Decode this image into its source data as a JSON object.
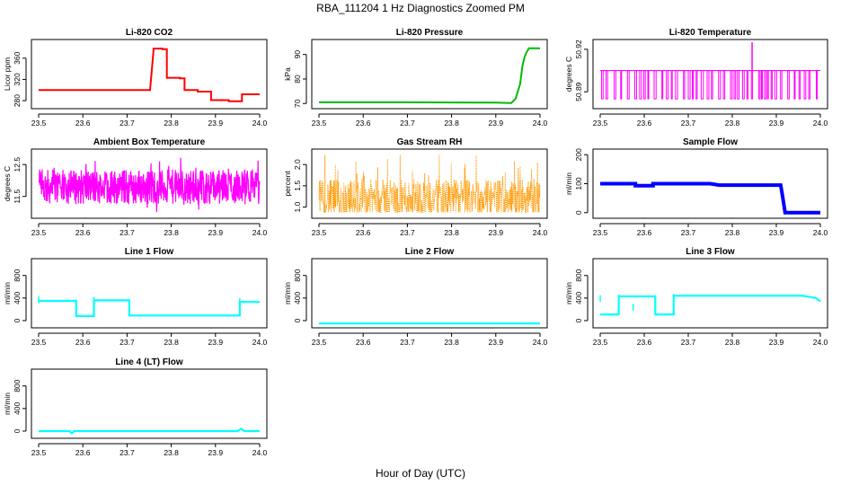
{
  "figure": {
    "title": "RBA_111204  1 Hz Diagnostics Zoomed PM",
    "xlabel": "Hour of Day (UTC)"
  },
  "chart_data": [
    {
      "type": "line",
      "title": "Li-820 CO2",
      "ylabel": "Licor ppm",
      "color": "#ff0000",
      "xlim": [
        23.5,
        24.0
      ],
      "ylim": [
        270,
        390
      ],
      "xticks": [
        "23.5",
        "23.6",
        "23.7",
        "23.8",
        "23.9",
        "24.0"
      ],
      "yticks": [
        "280",
        "320",
        "360"
      ],
      "series": [
        {
          "name": "CO2",
          "x": [
            23.5,
            23.75,
            23.752,
            23.76,
            23.76,
            23.78,
            23.78,
            23.79,
            23.79,
            23.82,
            23.82,
            23.83,
            23.83,
            23.86,
            23.86,
            23.89,
            23.89,
            23.93,
            23.93,
            23.96,
            23.96,
            24.0
          ],
          "y": [
            300,
            300,
            300,
            375,
            378,
            378,
            377,
            377,
            323,
            323,
            322,
            322,
            300,
            300,
            297,
            297,
            281,
            281,
            279,
            279,
            292,
            292
          ]
        }
      ]
    },
    {
      "type": "line",
      "title": "Li-820 Pressure",
      "ylabel": "kPa",
      "color": "#00bb00",
      "xlim": [
        23.5,
        24.0
      ],
      "ylim": [
        69,
        95
      ],
      "xticks": [
        "23.5",
        "23.6",
        "23.7",
        "23.8",
        "23.9",
        "24.0"
      ],
      "yticks": [
        "70",
        "80",
        "90"
      ],
      "series": [
        {
          "name": "Pressure",
          "x": [
            23.5,
            23.7,
            23.9,
            23.935,
            23.945,
            23.955,
            23.96,
            23.965,
            23.97,
            23.975,
            23.98,
            24.0
          ],
          "y": [
            70.5,
            70.5,
            70.4,
            70.2,
            72,
            78,
            85,
            89,
            91,
            92.5,
            92.5,
            92.5
          ]
        }
      ]
    },
    {
      "type": "line",
      "title": "Li-820 Temperature",
      "ylabel": "degrees C",
      "color": "#ff00ff",
      "xlim": [
        23.5,
        24.0
      ],
      "ylim": [
        50.88,
        50.925
      ],
      "xticks": [
        "23.5",
        "23.6",
        "23.7",
        "23.8",
        "23.9",
        "24.0"
      ],
      "yticks": [
        "50.89",
        "50.92"
      ],
      "series": [
        {
          "name": "Temperature",
          "x": [
            23.5,
            24.0
          ],
          "y": [
            50.905,
            50.905
          ]
        }
      ],
      "annotation": "two-level toggling between 50.905 and 50.885 with a spike to 50.925 near 23.845"
    },
    {
      "type": "line",
      "title": "Ambient Box Temperature",
      "ylabel": "degrees C",
      "color": "#ff00ff",
      "xlim": [
        23.5,
        24.0
      ],
      "ylim": [
        10.9,
        12.9
      ],
      "xticks": [
        "23.5",
        "23.6",
        "23.7",
        "23.8",
        "23.9",
        "24.0"
      ],
      "yticks": [
        "11.5",
        "12.5"
      ],
      "series": [
        {
          "name": "Ambient",
          "x": [
            23.5,
            24.0
          ],
          "y": [
            11.8,
            11.8
          ]
        }
      ],
      "annotation": "noisy band approx 11.2 to 12.6"
    },
    {
      "type": "scatter",
      "title": "Gas Stream RH",
      "ylabel": "percent",
      "color": "#ff9900",
      "xlim": [
        23.5,
        24.0
      ],
      "ylim": [
        0.8,
        2.3
      ],
      "xticks": [
        "23.5",
        "23.6",
        "23.7",
        "23.8",
        "23.9",
        "24.0"
      ],
      "yticks": [
        "1.0",
        "1.5",
        "2.0"
      ],
      "series": [
        {
          "name": "RH",
          "x": [
            23.5,
            24.0
          ],
          "y": [
            1.2,
            1.2
          ]
        }
      ],
      "annotation": "dense noisy band approx 0.9 to 2.2"
    },
    {
      "type": "line",
      "title": "Sample Flow",
      "ylabel": "ml/min",
      "color": "#0000ff",
      "xlim": [
        23.5,
        24.0
      ],
      "ylim": [
        -10,
        210
      ],
      "xticks": [
        "23.5",
        "23.6",
        "23.7",
        "23.8",
        "23.9",
        "24.0"
      ],
      "yticks": [
        "0",
        "100",
        "200"
      ],
      "series": [
        {
          "name": "Sample",
          "x": [
            23.5,
            23.58,
            23.58,
            23.62,
            23.62,
            23.75,
            23.77,
            23.91,
            23.915,
            23.92,
            24.0
          ],
          "y": [
            100,
            100,
            93,
            93,
            100,
            100,
            95,
            95,
            50,
            0,
            0
          ]
        }
      ]
    },
    {
      "type": "line",
      "title": "Line 1 Flow",
      "ylabel": "ml/min",
      "color": "#00ffff",
      "xlim": [
        23.5,
        24.0
      ],
      "ylim": [
        -80,
        1050
      ],
      "xticks": [
        "23.5",
        "23.6",
        "23.7",
        "23.8",
        "23.9",
        "24.0"
      ],
      "yticks": [
        "0",
        "400",
        "800"
      ],
      "series": [
        {
          "name": "Line1",
          "x": [
            23.5,
            23.585,
            23.585,
            23.625,
            23.625,
            23.705,
            23.705,
            23.955,
            23.955,
            24.0
          ],
          "y": [
            350,
            350,
            80,
            80,
            360,
            360,
            90,
            90,
            330,
            330
          ]
        }
      ]
    },
    {
      "type": "line",
      "title": "Line 2 Flow",
      "ylabel": "ml/min",
      "color": "#00ffff",
      "xlim": [
        23.5,
        24.0
      ],
      "ylim": [
        -80,
        1050
      ],
      "xticks": [
        "23.5",
        "23.6",
        "23.7",
        "23.8",
        "23.9",
        "24.0"
      ],
      "yticks": [
        "0",
        "400",
        "800"
      ],
      "series": [
        {
          "name": "Line2",
          "x": [
            23.5,
            24.0
          ],
          "y": [
            -50,
            -50
          ]
        }
      ]
    },
    {
      "type": "line",
      "title": "Line 3 Flow",
      "ylabel": "ml/min",
      "color": "#00ffff",
      "xlim": [
        23.5,
        24.0
      ],
      "ylim": [
        -80,
        1050
      ],
      "xticks": [
        "23.5",
        "23.6",
        "23.7",
        "23.8",
        "23.9",
        "24.0"
      ],
      "yticks": [
        "0",
        "400",
        "800"
      ],
      "series": [
        {
          "name": "Line3",
          "x": [
            23.5,
            23.542,
            23.542,
            23.625,
            23.625,
            23.667,
            23.667,
            23.96,
            23.99,
            24.0
          ],
          "y": [
            110,
            110,
            430,
            430,
            110,
            110,
            440,
            440,
            400,
            340
          ]
        }
      ]
    },
    {
      "type": "line",
      "title": "Line 4 (LT) Flow",
      "ylabel": "ml/min",
      "color": "#00ffff",
      "xlim": [
        23.5,
        24.0
      ],
      "ylim": [
        -80,
        1050
      ],
      "xticks": [
        "23.5",
        "23.6",
        "23.7",
        "23.8",
        "23.9",
        "24.0"
      ],
      "yticks": [
        "0",
        "400",
        "800"
      ],
      "series": [
        {
          "name": "Line4",
          "x": [
            23.5,
            23.57,
            23.575,
            23.58,
            23.95,
            23.958,
            23.965,
            24.0
          ],
          "y": [
            0,
            0,
            -40,
            0,
            0,
            40,
            0,
            0
          ]
        }
      ]
    }
  ]
}
